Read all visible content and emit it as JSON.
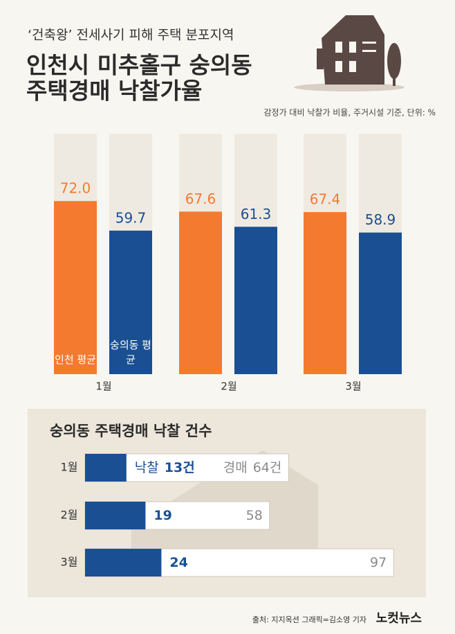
{
  "header": {
    "supertitle": "‘건축왕’ 전세사기 피해 주택 분포지역",
    "title_lines": [
      "인천시 미추홀구 숭의동",
      "주택경매 낙찰가율"
    ],
    "note": "감정가 대비 낙찰가 비율, 주거시설 기준, 단위: %"
  },
  "chart_data": [
    {
      "type": "bar",
      "categories": [
        "1월",
        "2월",
        "3월"
      ],
      "ylim": [
        0,
        100
      ],
      "series": [
        {
          "name": "인천 평균",
          "color": "#f47a30",
          "values": [
            72.0,
            67.6,
            67.4
          ],
          "value_labels": [
            "72.0",
            "67.6",
            "67.4"
          ]
        },
        {
          "name": "숭의동 평균",
          "color": "#1a4f93",
          "values": [
            59.7,
            61.3,
            58.9
          ]
        }
      ]
    },
    {
      "type": "hbar",
      "title": "숭의동 주택경매 낙찰 건수",
      "categories": [
        "1월",
        "2월",
        "3월"
      ],
      "xlim": [
        0,
        100
      ],
      "series": [
        {
          "name": "낙찰",
          "color": "#1a4f93",
          "values": [
            13,
            19,
            24
          ],
          "value_labels": [
            "13건",
            "19",
            "24"
          ]
        },
        {
          "name": "경매",
          "color": "#ffffff",
          "values": [
            64,
            58,
            97
          ],
          "value_labels": [
            "64건",
            "58",
            "97"
          ]
        }
      ]
    }
  ],
  "footer": {
    "source": "출처: 지지옥션  그래픽=김소영 기자",
    "logo": "노컷뉴스"
  }
}
